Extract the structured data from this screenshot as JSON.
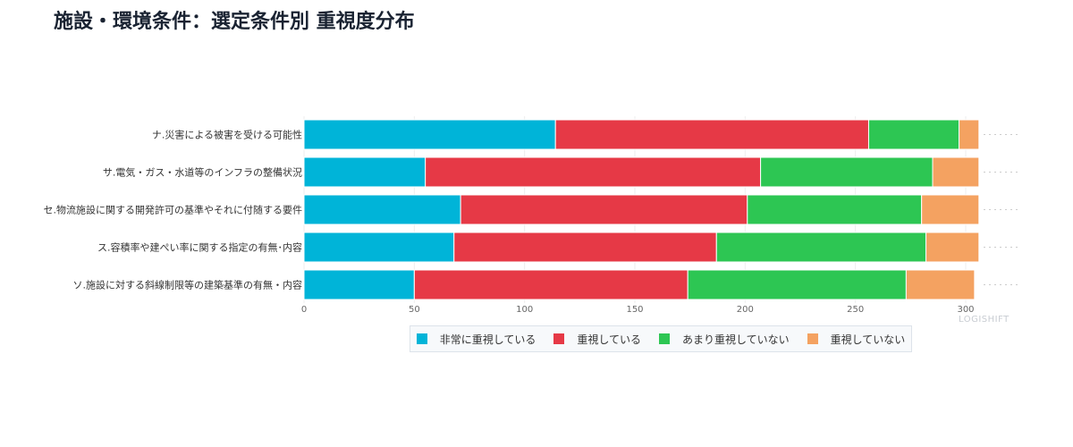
{
  "title": "施設・環境条件：選定条件別 重視度分布",
  "watermark": "LOGISHIFT",
  "colors": {
    "非常に重視している": "#00b4d8",
    "重視している": "#e63946",
    "あまり重視していない": "#2dc653",
    "重視していない": "#f4a261"
  },
  "chart_data": {
    "type": "bar",
    "orientation": "horizontal",
    "stacked": true,
    "categories": [
      "ナ.災害による被害を受ける可能性",
      "サ.電気・ガス・水道等のインフラの整備状況",
      "セ.物流施設に関する開発許可の基準やそれに付随する要件",
      "ス.容積率や建ぺい率に関する指定の有無･内容",
      "ソ.施設に対する斜線制限等の建築基準の有無・内容"
    ],
    "series": [
      {
        "name": "非常に重視している",
        "color": "#00b4d8",
        "values": [
          114,
          55,
          71,
          68,
          50
        ]
      },
      {
        "name": "重視している",
        "color": "#e63946",
        "values": [
          142,
          152,
          130,
          119,
          124
        ]
      },
      {
        "name": "あまり重視していない",
        "color": "#2dc653",
        "values": [
          41,
          78,
          79,
          95,
          99
        ]
      },
      {
        "name": "重視していない",
        "color": "#f4a261",
        "values": [
          9,
          21,
          26,
          24,
          31
        ]
      }
    ],
    "xlim": [
      0,
      300
    ],
    "xticks": [
      "0",
      "50",
      "100",
      "150",
      "200",
      "250",
      "300"
    ],
    "grid": true,
    "legend_position": "bottom"
  }
}
